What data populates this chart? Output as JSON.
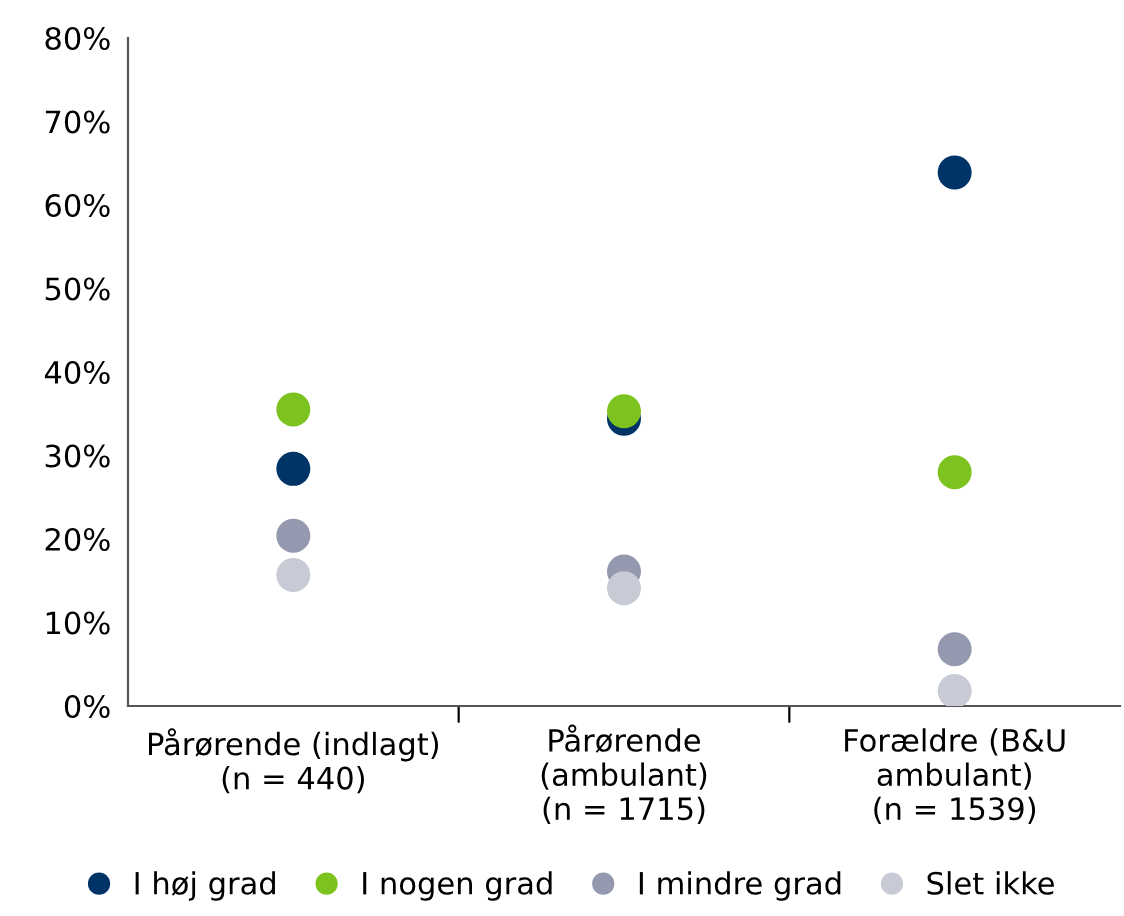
{
  "chart_data": {
    "type": "scatter",
    "categories": [
      "Pårørende (indlagt)\n(n = 440)",
      "Pårørende\n(ambulant)\n(n = 1715)",
      "Forældre (B&U\nambulant)\n(n = 1539)"
    ],
    "series": [
      {
        "name": "I høj grad",
        "color": "#003366",
        "values": [
          28.4,
          34.4,
          63.9
        ]
      },
      {
        "name": "I nogen grad",
        "color": "#7dc31f",
        "values": [
          35.5,
          35.3,
          28.0
        ]
      },
      {
        "name": "I mindre grad",
        "color": "#9499af",
        "values": [
          20.4,
          16.1,
          6.8
        ]
      },
      {
        "name": "Slet ikke",
        "color": "#c8cad5",
        "values": [
          15.7,
          14.1,
          1.8
        ]
      }
    ],
    "ylim": [
      0,
      80
    ],
    "yticks": [
      {
        "value": 0,
        "label": "0%"
      },
      {
        "value": 10,
        "label": "10%"
      },
      {
        "value": 20,
        "label": "20%"
      },
      {
        "value": 30,
        "label": "30%"
      },
      {
        "value": 40,
        "label": "40%"
      },
      {
        "value": 50,
        "label": "50%"
      },
      {
        "value": 60,
        "label": "60%"
      },
      {
        "value": 70,
        "label": "70%"
      },
      {
        "value": 80,
        "label": "80%"
      }
    ],
    "grid": false,
    "legend": "bottom",
    "marker": "circle"
  }
}
